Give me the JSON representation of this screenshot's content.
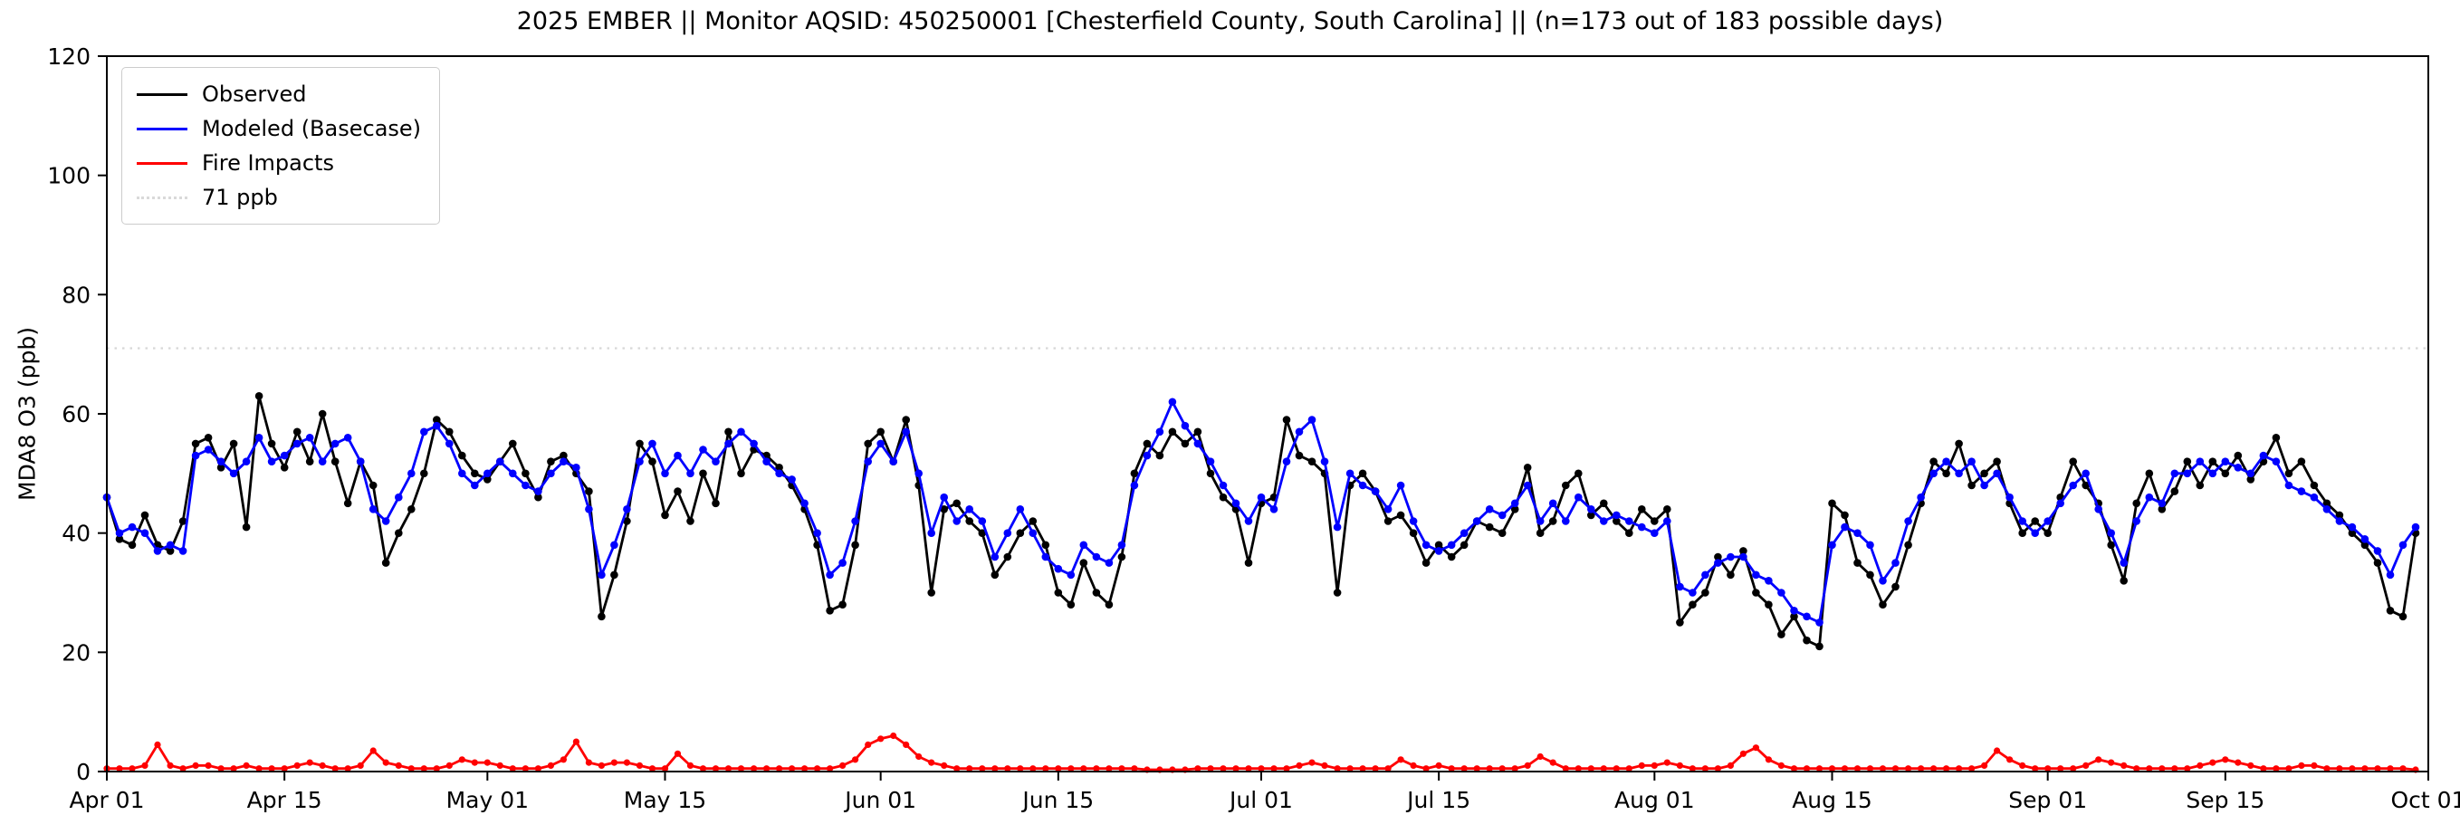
{
  "title": "2025 EMBER || Monitor AQSID: 450250001 [Chesterfield County, South Carolina] || (n=173 out of 183 possible days)",
  "chart_data": {
    "type": "line",
    "title": "2025 EMBER || Monitor AQSID: 450250001 [Chesterfield County, South Carolina] || (n=173 out of 183 possible days)",
    "xlabel": "",
    "ylabel": "MDA8 O3 (ppb)",
    "ylim": [
      0,
      120
    ],
    "yticks": [
      0,
      20,
      40,
      60,
      80,
      100,
      120
    ],
    "xlim_days": [
      0,
      183
    ],
    "x_start": "Apr 01",
    "x_end": "Oct 01",
    "grid": false,
    "legend_position": "upper-left",
    "legend": [
      "Observed",
      "Modeled (Basecase)",
      "Fire Impacts",
      "71 ppb"
    ],
    "reference_line": {
      "value": 71,
      "label": "71 ppb",
      "color": "#d9d9d9",
      "style": "dotted"
    },
    "xticks": [
      {
        "day": 0,
        "label": "Apr 01"
      },
      {
        "day": 14,
        "label": "Apr 15"
      },
      {
        "day": 30,
        "label": "May 01"
      },
      {
        "day": 44,
        "label": "May 15"
      },
      {
        "day": 61,
        "label": "Jun 01"
      },
      {
        "day": 75,
        "label": "Jun 15"
      },
      {
        "day": 91,
        "label": "Jul 01"
      },
      {
        "day": 105,
        "label": "Jul 15"
      },
      {
        "day": 122,
        "label": "Aug 01"
      },
      {
        "day": 136,
        "label": "Aug 15"
      },
      {
        "day": 153,
        "label": "Sep 01"
      },
      {
        "day": 167,
        "label": "Sep 15"
      },
      {
        "day": 183,
        "label": "Oct 01"
      }
    ],
    "series": [
      {
        "name": "Observed",
        "color": "#000000",
        "values": [
          46,
          39,
          38,
          43,
          38,
          37,
          42,
          55,
          56,
          51,
          55,
          41,
          63,
          55,
          51,
          57,
          52,
          60,
          52,
          45,
          52,
          48,
          35,
          40,
          44,
          50,
          59,
          57,
          53,
          50,
          49,
          52,
          55,
          50,
          46,
          52,
          53,
          50,
          47,
          26,
          33,
          42,
          55,
          52,
          43,
          47,
          42,
          50,
          45,
          57,
          50,
          54,
          53,
          51,
          48,
          44,
          38,
          27,
          28,
          38,
          55,
          57,
          52,
          59,
          48,
          30,
          44,
          45,
          42,
          40,
          33,
          36,
          40,
          42,
          38,
          30,
          28,
          35,
          30,
          28,
          36,
          50,
          55,
          53,
          57,
          55,
          57,
          50,
          46,
          44,
          35,
          45,
          46,
          59,
          53,
          52,
          50,
          30,
          48,
          50,
          47,
          42,
          43,
          40,
          35,
          38,
          36,
          38,
          42,
          41,
          40,
          44,
          51,
          40,
          42,
          48,
          50,
          43,
          45,
          42,
          40,
          44,
          42,
          44,
          25,
          28,
          30,
          36,
          33,
          37,
          30,
          28,
          23,
          26,
          22,
          21,
          45,
          43,
          35,
          33,
          28,
          31,
          38,
          45,
          52,
          50,
          55,
          48,
          50,
          52,
          45,
          40,
          42,
          40,
          46,
          52,
          48,
          45,
          38,
          32,
          45,
          50,
          44,
          47,
          52,
          48,
          52,
          50,
          53,
          49,
          52,
          56,
          50,
          52,
          48,
          45,
          43,
          40,
          38,
          35,
          27,
          26,
          40
        ]
      },
      {
        "name": "Modeled (Basecase)",
        "color": "#0000ff",
        "values": [
          46,
          40,
          41,
          40,
          37,
          38,
          37,
          53,
          54,
          52,
          50,
          52,
          56,
          52,
          53,
          55,
          56,
          52,
          55,
          56,
          52,
          44,
          42,
          46,
          50,
          57,
          58,
          55,
          50,
          48,
          50,
          52,
          50,
          48,
          47,
          50,
          52,
          51,
          44,
          33,
          38,
          44,
          52,
          55,
          50,
          53,
          50,
          54,
          52,
          55,
          57,
          55,
          52,
          50,
          49,
          45,
          40,
          33,
          35,
          42,
          52,
          55,
          52,
          57,
          50,
          40,
          46,
          42,
          44,
          42,
          36,
          40,
          44,
          40,
          36,
          34,
          33,
          38,
          36,
          35,
          38,
          48,
          53,
          57,
          62,
          58,
          55,
          52,
          48,
          45,
          42,
          46,
          44,
          52,
          57,
          59,
          52,
          41,
          50,
          48,
          47,
          44,
          48,
          42,
          38,
          37,
          38,
          40,
          42,
          44,
          43,
          45,
          48,
          42,
          45,
          42,
          46,
          44,
          42,
          43,
          42,
          41,
          40,
          42,
          31,
          30,
          33,
          35,
          36,
          36,
          33,
          32,
          30,
          27,
          26,
          25,
          38,
          41,
          40,
          38,
          32,
          35,
          42,
          46,
          50,
          52,
          50,
          52,
          48,
          50,
          46,
          42,
          40,
          42,
          45,
          48,
          50,
          44,
          40,
          35,
          42,
          46,
          45,
          50,
          50,
          52,
          50,
          52,
          51,
          50,
          53,
          52,
          48,
          47,
          46,
          44,
          42,
          41,
          39,
          37,
          33,
          38,
          41
        ]
      },
      {
        "name": "Fire Impacts",
        "color": "#ff0000",
        "values": [
          0.5,
          0.5,
          0.5,
          1,
          4.5,
          1,
          0.5,
          1,
          1,
          0.5,
          0.5,
          1,
          0.5,
          0.5,
          0.5,
          1,
          1.5,
          1,
          0.5,
          0.5,
          1,
          3.5,
          1.5,
          1,
          0.5,
          0.5,
          0.5,
          1,
          2,
          1.5,
          1.5,
          1,
          0.5,
          0.5,
          0.5,
          1,
          2,
          5,
          1.5,
          1,
          1.5,
          1.5,
          1,
          0.5,
          0.5,
          3,
          1,
          0.5,
          0.5,
          0.5,
          0.5,
          0.5,
          0.5,
          0.5,
          0.5,
          0.5,
          0.5,
          0.5,
          1,
          2,
          4.5,
          5.5,
          6,
          4.5,
          2.5,
          1.5,
          1,
          0.5,
          0.5,
          0.5,
          0.5,
          0.5,
          0.5,
          0.5,
          0.5,
          0.5,
          0.5,
          0.5,
          0.5,
          0.5,
          0.5,
          0.5,
          0.3,
          0.3,
          0.3,
          0.3,
          0.5,
          0.5,
          0.5,
          0.5,
          0.5,
          0.5,
          0.5,
          0.5,
          1,
          1.5,
          1,
          0.5,
          0.5,
          0.5,
          0.5,
          0.5,
          2,
          1,
          0.5,
          1,
          0.5,
          0.5,
          0.5,
          0.5,
          0.5,
          0.5,
          1,
          2.5,
          1.5,
          0.5,
          0.5,
          0.5,
          0.5,
          0.5,
          0.5,
          1,
          1,
          1.5,
          1,
          0.5,
          0.5,
          0.5,
          1,
          3,
          4,
          2,
          1,
          0.5,
          0.5,
          0.5,
          0.5,
          0.5,
          0.5,
          0.5,
          0.5,
          0.5,
          0.5,
          0.5,
          0.5,
          0.5,
          0.5,
          0.5,
          1,
          3.5,
          2,
          1,
          0.5,
          0.5,
          0.5,
          0.5,
          1,
          2,
          1.5,
          1,
          0.5,
          0.5,
          0.5,
          0.5,
          0.5,
          1,
          1.5,
          2,
          1.5,
          1,
          0.5,
          0.5,
          0.5,
          1,
          1,
          0.5,
          0.5,
          0.5,
          0.5,
          0.5,
          0.5,
          0.5,
          0.3
        ]
      }
    ]
  }
}
